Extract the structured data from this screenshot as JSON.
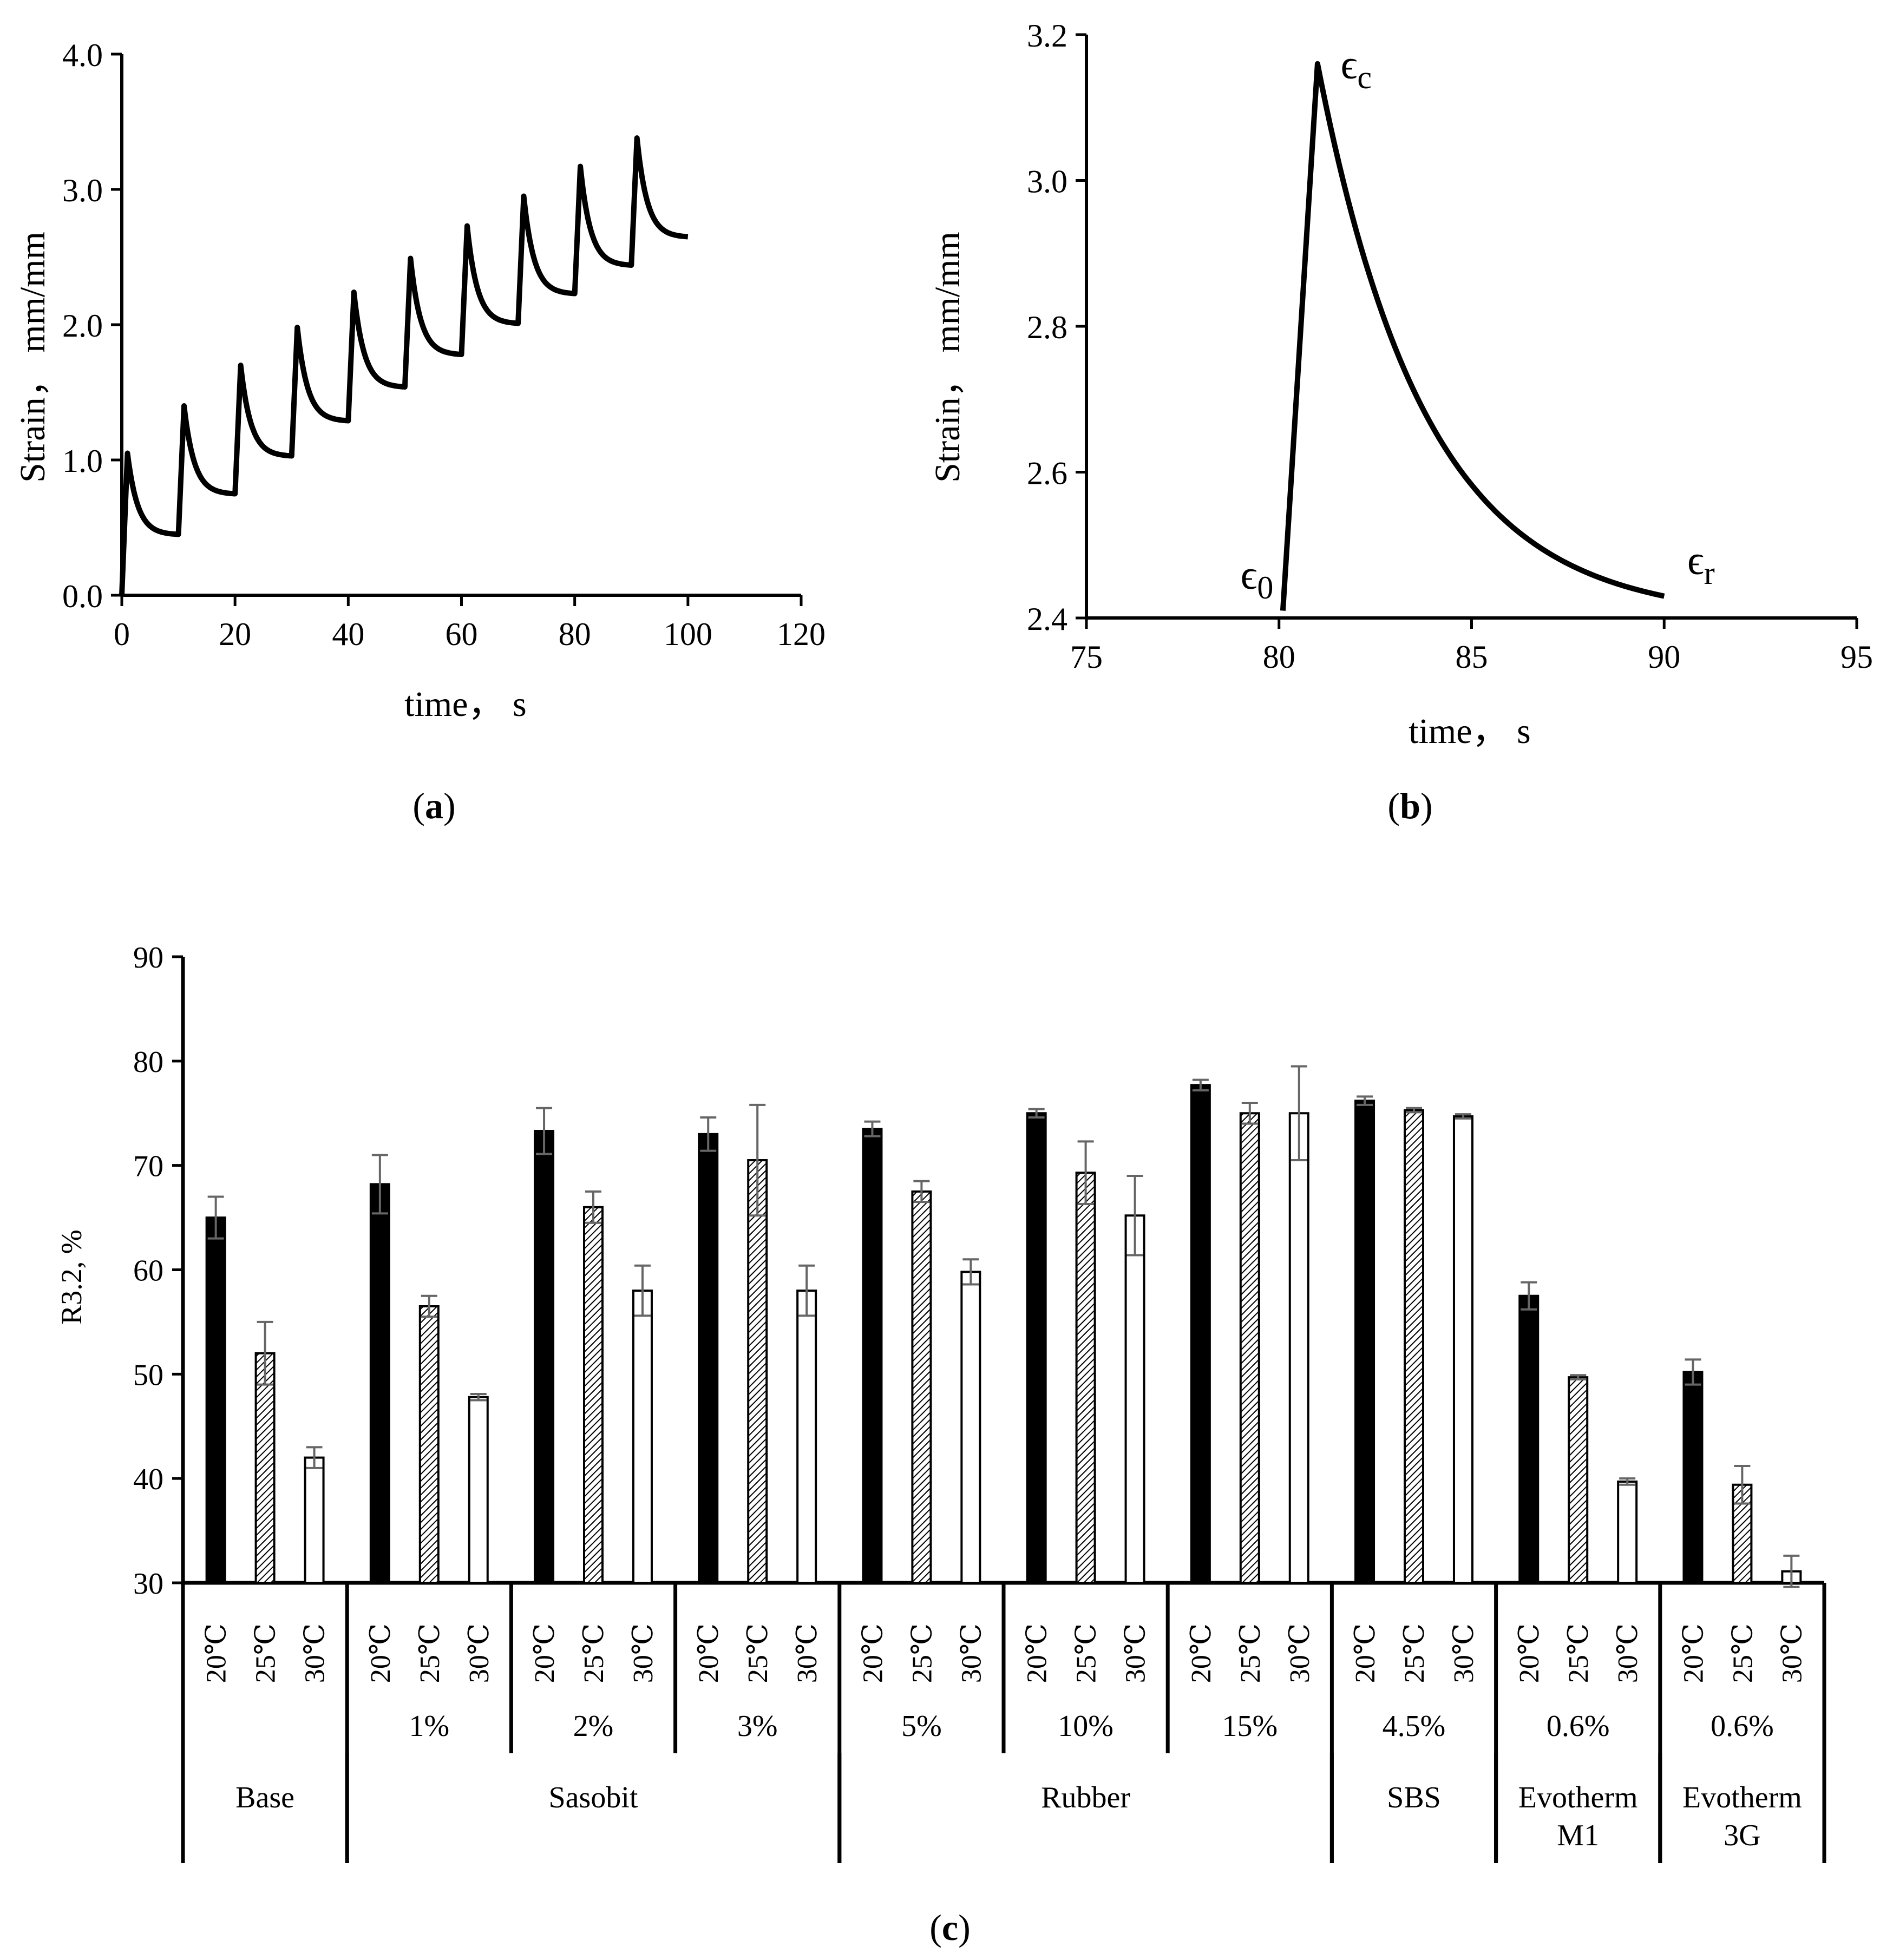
{
  "panel_labels": {
    "a": "a",
    "b": "b",
    "c": "c"
  },
  "chart_data": [
    {
      "id": "a",
      "type": "line",
      "title": "",
      "xlabel": "time， s",
      "ylabel": "Strain， mm/mm",
      "xlim": [
        0,
        120
      ],
      "ylim": [
        0,
        4
      ],
      "xticks": [
        "0",
        "20",
        "40",
        "60",
        "80",
        "100",
        "120"
      ],
      "yticks": [
        "0.0",
        "1.0",
        "2.0",
        "3.0",
        "4.0"
      ],
      "cycles": [
        {
          "t0": 0,
          "start": 0.0,
          "peak": 1.05,
          "end": 0.45
        },
        {
          "t0": 10,
          "start": 0.45,
          "peak": 1.4,
          "end": 0.75
        },
        {
          "t0": 20,
          "start": 0.75,
          "peak": 1.7,
          "end": 1.03
        },
        {
          "t0": 30,
          "start": 1.03,
          "peak": 1.98,
          "end": 1.29
        },
        {
          "t0": 40,
          "start": 1.29,
          "peak": 2.24,
          "end": 1.54
        },
        {
          "t0": 50,
          "start": 1.54,
          "peak": 2.49,
          "end": 1.78
        },
        {
          "t0": 60,
          "start": 1.78,
          "peak": 2.73,
          "end": 2.01
        },
        {
          "t0": 70,
          "start": 2.01,
          "peak": 2.95,
          "end": 2.23
        },
        {
          "t0": 80,
          "start": 2.23,
          "peak": 3.17,
          "end": 2.44
        },
        {
          "t0": 90,
          "start": 2.44,
          "peak": 3.38,
          "end": 2.65
        }
      ]
    },
    {
      "id": "b",
      "type": "line",
      "title": "",
      "xlabel": "time， s",
      "ylabel": "Strain， mm/mm",
      "xlim": [
        75,
        95
      ],
      "ylim": [
        2.4,
        3.2
      ],
      "xticks": [
        "75",
        "80",
        "85",
        "90",
        "95"
      ],
      "yticks": [
        "2.4",
        "2.6",
        "2.8",
        "3.0",
        "3.2"
      ],
      "cycle": {
        "t0": 80.1,
        "tpeak": 81.0,
        "tend": 90.0,
        "start": 2.41,
        "peak": 3.16,
        "end": 2.43
      },
      "annotations": [
        {
          "symbol": "ϵ",
          "sub": "0",
          "x": 79.0,
          "y": 2.44
        },
        {
          "symbol": "ϵ",
          "sub": "c",
          "x": 81.6,
          "y": 3.14
        },
        {
          "symbol": "ϵ",
          "sub": "r",
          "x": 90.6,
          "y": 2.46
        }
      ]
    },
    {
      "id": "c",
      "type": "bar",
      "title": "",
      "ylabel": "R3.2, %",
      "ylim": [
        30,
        90
      ],
      "yticks": [
        "30",
        "40",
        "50",
        "60",
        "70",
        "80",
        "90"
      ],
      "temperatures": [
        "20℃",
        "25℃",
        "30℃"
      ],
      "legend_patterns": [
        "solid-black",
        "hatched",
        "white"
      ],
      "groups": [
        {
          "dosage": "",
          "values": [
            65.0,
            52.0,
            42.0
          ],
          "errors": [
            2.0,
            3.0,
            1.0
          ]
        },
        {
          "dosage": "1%",
          "values": [
            68.2,
            56.5,
            47.8
          ],
          "errors": [
            2.8,
            1.0,
            0.3
          ]
        },
        {
          "dosage": "2%",
          "values": [
            73.3,
            66.0,
            58.0
          ],
          "errors": [
            2.2,
            1.5,
            2.4
          ]
        },
        {
          "dosage": "3%",
          "values": [
            73.0,
            70.5,
            58.0
          ],
          "errors": [
            1.6,
            5.3,
            2.4
          ]
        },
        {
          "dosage": "5%",
          "values": [
            73.5,
            67.5,
            59.8
          ],
          "errors": [
            0.7,
            1.0,
            1.2
          ]
        },
        {
          "dosage": "10%",
          "values": [
            75.0,
            69.3,
            65.2
          ],
          "errors": [
            0.4,
            3.0,
            3.8
          ]
        },
        {
          "dosage": "15%",
          "values": [
            77.7,
            75.0,
            75.0
          ],
          "errors": [
            0.5,
            1.0,
            4.5
          ]
        },
        {
          "dosage": "4.5%",
          "values": [
            76.2,
            75.3,
            74.7
          ],
          "errors": [
            0.4,
            0.2,
            0.2
          ]
        },
        {
          "dosage": "0.6%",
          "values": [
            57.5,
            49.7,
            39.7
          ],
          "errors": [
            1.3,
            0.2,
            0.3
          ]
        },
        {
          "dosage": "0.6%",
          "values": [
            50.2,
            39.4,
            31.1
          ],
          "errors": [
            1.2,
            1.8,
            1.5
          ]
        }
      ],
      "materials": [
        {
          "label": [
            "Base"
          ],
          "span": [
            0,
            0
          ]
        },
        {
          "label": [
            "Sasobit"
          ],
          "span": [
            1,
            3
          ]
        },
        {
          "label": [
            "Rubber"
          ],
          "span": [
            4,
            6
          ]
        },
        {
          "label": [
            "SBS"
          ],
          "span": [
            7,
            7
          ]
        },
        {
          "label": [
            "Evotherm",
            "M1"
          ],
          "span": [
            8,
            8
          ]
        },
        {
          "label": [
            "Evotherm",
            "3G"
          ],
          "span": [
            9,
            9
          ]
        }
      ]
    }
  ]
}
